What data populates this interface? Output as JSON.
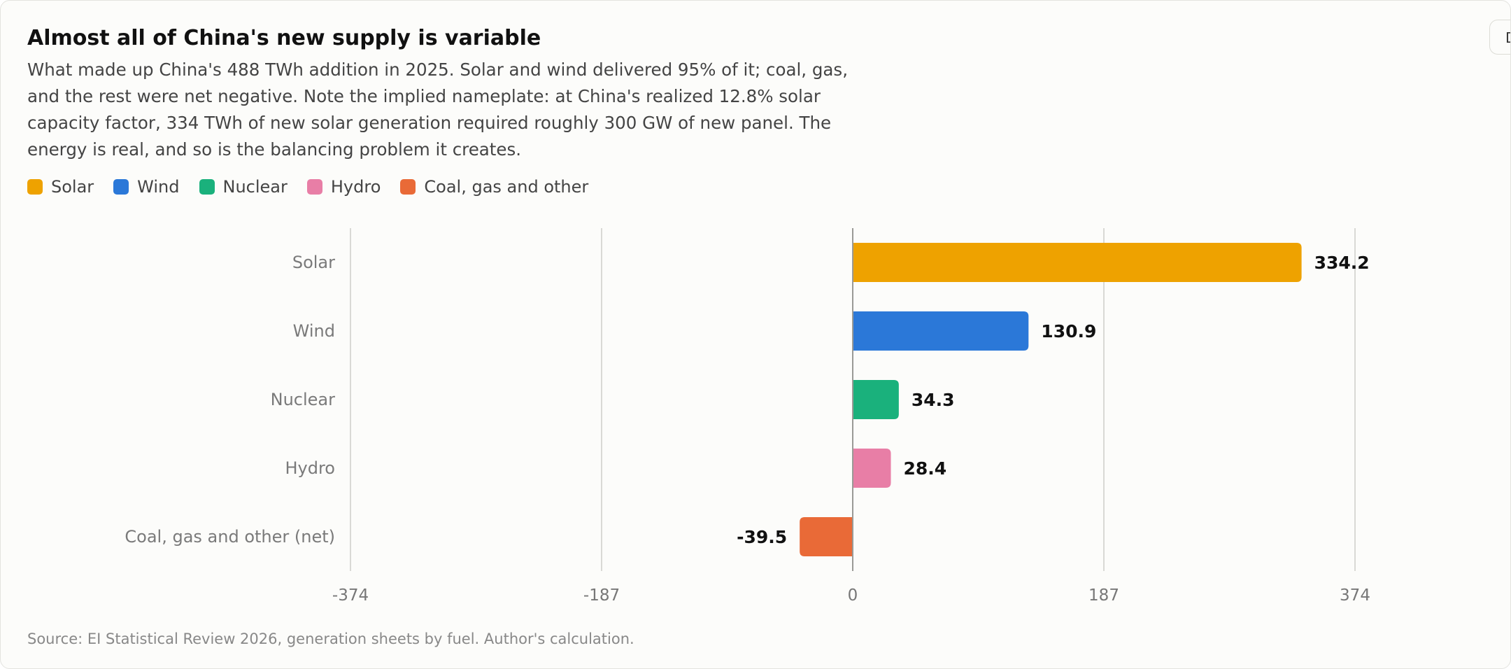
{
  "corner_button": {
    "label": "D"
  },
  "header": {
    "title": "Almost all of China's new supply is variable",
    "subtitle": "What made up China's 488 TWh addition in 2025. Solar and wind delivered 95% of it; coal, gas, and the rest were net negative. Note the implied nameplate: at China's realized 12.8% solar capacity factor, 334 TWh of new solar generation required roughly 300 GW of new panel. The energy is real, and so is the balancing problem it creates."
  },
  "legend": [
    {
      "label": "Solar",
      "color": "#eea200"
    },
    {
      "label": "Wind",
      "color": "#2b78d8"
    },
    {
      "label": "Nuclear",
      "color": "#1ab17c"
    },
    {
      "label": "Hydro",
      "color": "#e87ea6"
    },
    {
      "label": "Coal, gas and other",
      "color": "#e96a37"
    }
  ],
  "chart_data": {
    "type": "bar",
    "orientation": "horizontal",
    "categories": [
      "Solar",
      "Wind",
      "Nuclear",
      "Hydro",
      "Coal, gas and other (net)"
    ],
    "values": [
      334.2,
      130.9,
      34.3,
      28.4,
      -39.5
    ],
    "value_labels": [
      "334.2",
      "130.9",
      "34.3",
      "28.4",
      "-39.5"
    ],
    "colors": [
      "#eea200",
      "#2b78d8",
      "#1ab17c",
      "#e87ea6",
      "#e96a37"
    ],
    "xlim": [
      -374,
      374
    ],
    "ticks": [
      -374,
      -187,
      0,
      187,
      374
    ],
    "tick_labels": [
      "-374",
      "-187",
      "0",
      "187",
      "374"
    ],
    "grid": true
  },
  "footer": {
    "source": "Source: EI Statistical Review 2026, generation sheets by fuel. Author's calculation."
  }
}
